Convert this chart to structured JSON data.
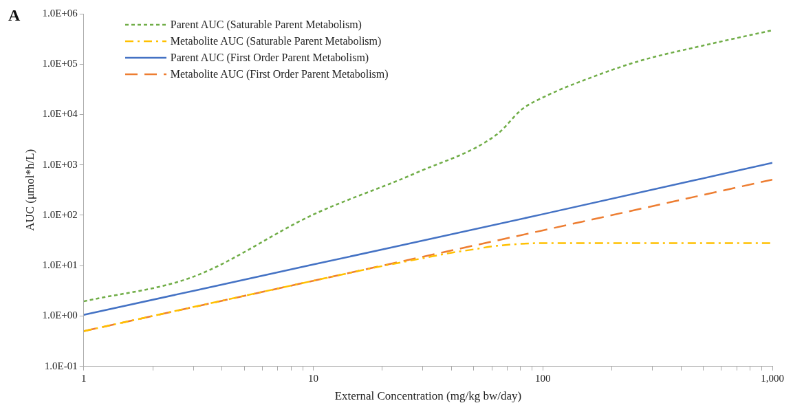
{
  "chart_data": {
    "type": "line",
    "xlabel": "External Concentration (mg/kg bw/day)",
    "ylabel": "AUC (μmol*h/L)",
    "annotations": [
      "A"
    ],
    "log": "xy",
    "grid": false,
    "legend": "top left",
    "marker": "none",
    "xlim": [
      1,
      1000
    ],
    "ylim": [
      0.1,
      1000000
    ],
    "xticks": [
      1,
      {
        "value": 2,
        "label": null
      },
      {
        "value": 3,
        "label": null
      },
      {
        "value": 4,
        "label": null
      },
      {
        "value": 5,
        "label": null
      },
      {
        "value": 6,
        "label": null
      },
      {
        "value": 7,
        "label": null
      },
      {
        "value": 8,
        "label": null
      },
      {
        "value": 9,
        "label": null
      },
      10,
      {
        "value": 20,
        "label": null
      },
      {
        "value": 30,
        "label": null
      },
      {
        "value": 40,
        "label": null
      },
      {
        "value": 50,
        "label": null
      },
      {
        "value": 60,
        "label": null
      },
      {
        "value": 70,
        "label": null
      },
      {
        "value": 80,
        "label": null
      },
      {
        "value": 90,
        "label": null
      },
      100,
      {
        "value": 200,
        "label": null
      },
      {
        "value": 300,
        "label": null
      },
      {
        "value": 400,
        "label": null
      },
      {
        "value": 500,
        "label": null
      },
      {
        "value": 600,
        "label": null
      },
      {
        "value": 700,
        "label": null
      },
      {
        "value": 800,
        "label": null
      },
      {
        "value": 900,
        "label": null
      },
      {
        "value": 1000,
        "label": "1,000"
      }
    ],
    "yticks": [
      {
        "value": 0.1,
        "label": "1.0E-01"
      },
      {
        "value": 1,
        "label": "1.0E+00"
      },
      {
        "value": 10,
        "label": "1.0E+01"
      },
      {
        "value": 100,
        "label": "1.0E+02"
      },
      {
        "value": 1000,
        "label": "1.0E+03"
      },
      {
        "value": 10000,
        "label": "1.0E+04"
      },
      {
        "value": 100000,
        "label": "1.0E+05"
      },
      {
        "value": 1000000,
        "label": "1.0E+06"
      }
    ],
    "series": [
      {
        "name": "Parent AUC (Saturable Parent Metabolism)",
        "color": "#70ad47",
        "line_style": "dotted",
        "x": [
          1,
          3,
          10,
          28,
          63,
          81,
          104,
          162,
          263,
          525,
          1000
        ],
        "values": [
          1.95,
          6,
          103,
          690,
          4000,
          12600,
          23700,
          54000,
          115000,
          246000,
          470000
        ]
      },
      {
        "name": "Metabolite AUC (Saturable Parent Metabolism)",
        "color": "#ffc000",
        "line_style": "dashdot",
        "x": [
          1,
          10,
          20,
          30,
          40,
          50,
          60,
          80,
          100,
          200,
          1000
        ],
        "values": [
          0.5,
          5,
          9.8,
          14,
          18,
          21,
          24,
          27,
          28,
          28,
          28
        ]
      },
      {
        "name": "Parent AUC (First Order Parent Metabolism)",
        "color": "#4472c4",
        "line_style": "solid",
        "x": [
          1,
          10,
          100,
          1000
        ],
        "values": [
          1.05,
          10.5,
          105,
          1100
        ]
      },
      {
        "name": "Metabolite AUC (First Order Parent Metabolism)",
        "color": "#ed7d31",
        "line_style": "dashed",
        "x": [
          1,
          10,
          100,
          1000
        ],
        "values": [
          0.5,
          5,
          50,
          510
        ]
      }
    ]
  }
}
